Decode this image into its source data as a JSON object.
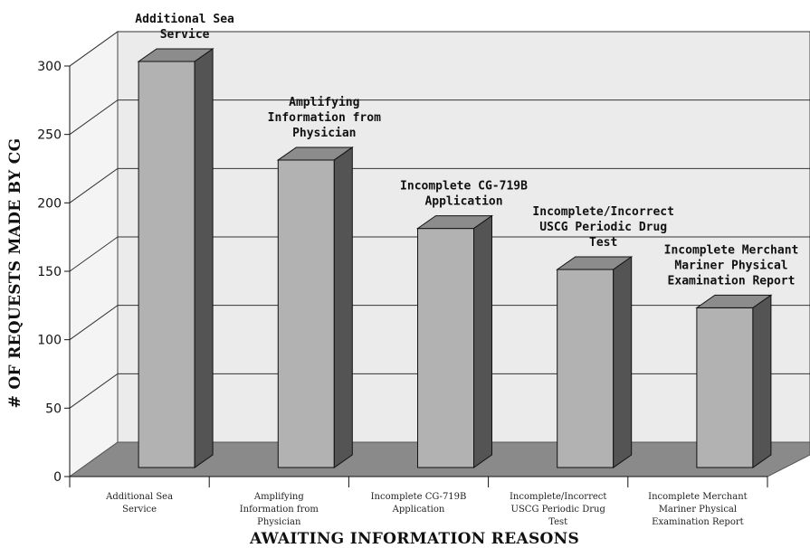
{
  "chart_data": {
    "type": "bar",
    "title": "",
    "xlabel": "AWAITING INFORMATION REASONS",
    "ylabel": "# OF REQUESTS MADE BY CG",
    "ylim": [
      0,
      300
    ],
    "yticks": [
      0,
      50,
      100,
      150,
      200,
      250,
      300
    ],
    "grid": true,
    "style": "3d",
    "categories": [
      [
        "Additional Sea",
        "Service"
      ],
      [
        "Amplifying",
        "Information from",
        "Physician"
      ],
      [
        "Incomplete CG-719B",
        "Application"
      ],
      [
        "Incomplete/Incorrect",
        "USCG Periodic Drug",
        "Test"
      ],
      [
        "Incomplete Merchant",
        "Mariner Physical",
        "Examination Report"
      ]
    ],
    "values": [
      300,
      228,
      178,
      148,
      120
    ],
    "colors": {
      "bar_front": "#b2b2b2",
      "bar_top": "#8c8c8c",
      "bar_side": "#545454",
      "floor": "#8a8a8a",
      "wall": "#ebebeb"
    }
  }
}
